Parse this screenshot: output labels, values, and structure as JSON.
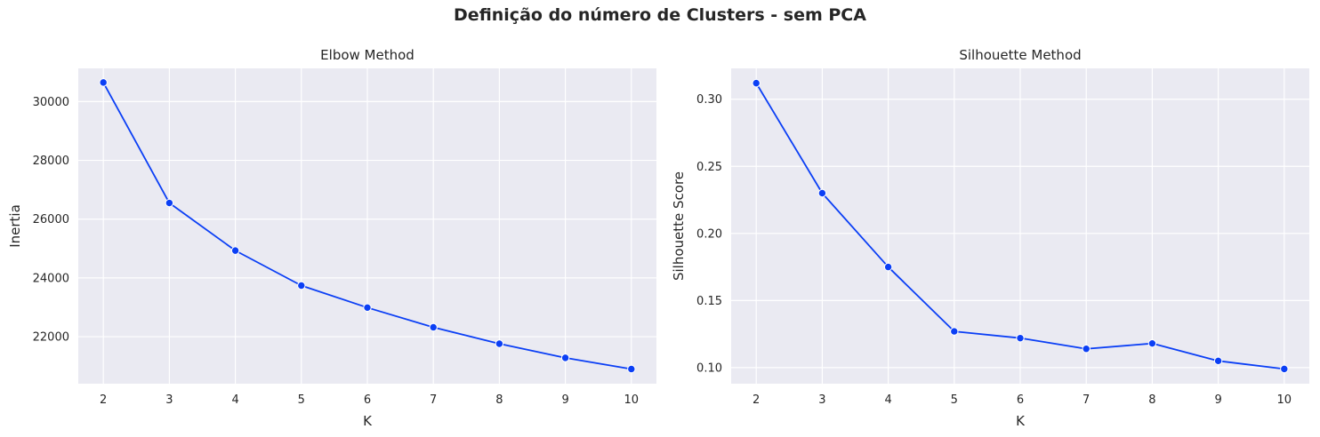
{
  "title": "Definição do número de Clusters - sem PCA",
  "colors": {
    "line": "#0b3ff5",
    "panel_bg": "#eaeaf2",
    "grid": "#ffffff"
  },
  "chart_data": [
    {
      "type": "line",
      "title": "Elbow Method",
      "xlabel": "K",
      "ylabel": "Inertia",
      "x": [
        2,
        3,
        4,
        5,
        6,
        7,
        8,
        9,
        10
      ],
      "values": [
        30650,
        26550,
        24930,
        23740,
        22990,
        22320,
        21760,
        21280,
        20900
      ],
      "xlim": [
        1.62,
        10.38
      ],
      "ylim": [
        20400,
        31130
      ],
      "xticks": [
        "2",
        "3",
        "4",
        "5",
        "6",
        "7",
        "8",
        "9",
        "10"
      ],
      "yticks": [
        "22000",
        "24000",
        "26000",
        "28000",
        "30000"
      ],
      "grid": true,
      "marker": "circle"
    },
    {
      "type": "line",
      "title": "Silhouette Method",
      "xlabel": "K",
      "ylabel": "Silhouette Score",
      "x": [
        2,
        3,
        4,
        5,
        6,
        7,
        8,
        9,
        10
      ],
      "values": [
        0.312,
        0.23,
        0.175,
        0.127,
        0.122,
        0.114,
        0.118,
        0.105,
        0.099
      ],
      "xlim": [
        1.62,
        10.38
      ],
      "ylim": [
        0.088,
        0.323
      ],
      "xticks": [
        "2",
        "3",
        "4",
        "5",
        "6",
        "7",
        "8",
        "9",
        "10"
      ],
      "yticks": [
        "0.10",
        "0.15",
        "0.20",
        "0.25",
        "0.30"
      ],
      "grid": true,
      "marker": "circle"
    }
  ]
}
